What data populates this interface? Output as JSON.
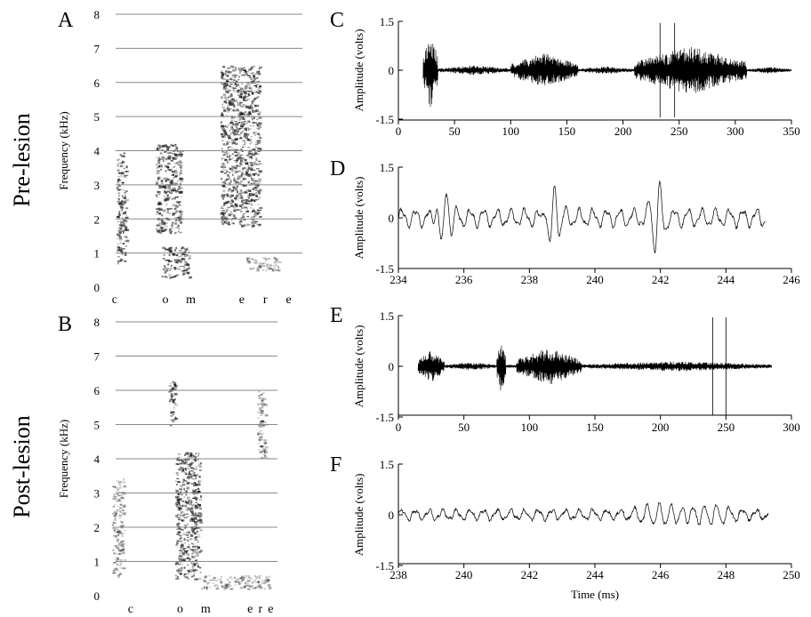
{
  "row_labels": {
    "top": "Pre-lesion",
    "bottom": "Post-lesion"
  },
  "panels": [
    {
      "id": "A",
      "letter": "A"
    },
    {
      "id": "B",
      "letter": "B"
    },
    {
      "id": "C",
      "letter": "C"
    },
    {
      "id": "D",
      "letter": "D"
    },
    {
      "id": "E",
      "letter": "E"
    },
    {
      "id": "F",
      "letter": "F"
    }
  ],
  "chart_data": [
    {
      "id": "A",
      "type": "heatmap",
      "title": "",
      "ylabel": "Frequency (kHz)",
      "xlabel": "",
      "ylim": [
        0,
        8
      ],
      "yticks": [
        "0",
        "1",
        "2",
        "3",
        "4",
        "5",
        "6",
        "7",
        "8"
      ],
      "grid": "horizontal",
      "phonemes": [
        "c",
        "o",
        "m",
        "e",
        "r",
        "e"
      ],
      "energy_blobs_khz_vs_relative_time": [
        {
          "t": [
            0.05,
            0.1
          ],
          "f": [
            0.7,
            4.0
          ],
          "level": "dark"
        },
        {
          "t": [
            0.25,
            0.38
          ],
          "f": [
            1.6,
            4.2
          ],
          "level": "dark"
        },
        {
          "t": [
            0.28,
            0.42
          ],
          "f": [
            0.3,
            1.2
          ],
          "level": "dark"
        },
        {
          "t": [
            0.58,
            0.78
          ],
          "f": [
            1.8,
            6.5
          ],
          "level": "dark"
        },
        {
          "t": [
            0.7,
            0.88
          ],
          "f": [
            0.5,
            0.9
          ],
          "level": "medium"
        }
      ]
    },
    {
      "id": "B",
      "type": "heatmap",
      "title": "",
      "ylabel": "Frequency (kHz)",
      "xlabel": "",
      "ylim": [
        0,
        8
      ],
      "yticks": [
        "0",
        "1",
        "2",
        "3",
        "4",
        "5",
        "6",
        "7",
        "8"
      ],
      "grid": "horizontal",
      "phonemes": [
        "c",
        "o",
        "m",
        "e",
        "r",
        "e"
      ],
      "energy_blobs_khz_vs_relative_time": [
        {
          "t": [
            0.03,
            0.1
          ],
          "f": [
            0.6,
            3.5
          ],
          "level": "medium"
        },
        {
          "t": [
            0.36,
            0.4
          ],
          "f": [
            5.0,
            6.3
          ],
          "level": "dark"
        },
        {
          "t": [
            0.4,
            0.55
          ],
          "f": [
            0.5,
            4.2
          ],
          "level": "dark"
        },
        {
          "t": [
            0.55,
            0.95
          ],
          "f": [
            0.2,
            0.6
          ],
          "level": "medium"
        },
        {
          "t": [
            0.88,
            0.93
          ],
          "f": [
            4.0,
            6.0
          ],
          "level": "medium"
        }
      ]
    },
    {
      "id": "C",
      "type": "line",
      "title": "",
      "ylabel": "Amplitude (volts)",
      "xlabel": "",
      "xlim": [
        0,
        350
      ],
      "ylim": [
        -1.5,
        1.5
      ],
      "xticks": [
        "0",
        "50",
        "100",
        "150",
        "200",
        "250",
        "300",
        "350"
      ],
      "yticks": [
        "1.5",
        "0",
        "-1.5"
      ],
      "envelope_segments_ms": [
        {
          "start": 22,
          "end": 35,
          "peak": 1.2
        },
        {
          "start": 35,
          "end": 100,
          "peak": 0.15
        },
        {
          "start": 100,
          "end": 160,
          "peak": 0.55
        },
        {
          "start": 160,
          "end": 210,
          "peak": 0.12
        },
        {
          "start": 210,
          "end": 310,
          "peak": 0.75
        },
        {
          "start": 310,
          "end": 350,
          "peak": 0.1
        }
      ],
      "spikes_ms": [
        233,
        246
      ]
    },
    {
      "id": "D",
      "type": "line",
      "title": "",
      "ylabel": "Amplitude (volts)",
      "xlabel": "",
      "xlim": [
        234,
        246
      ],
      "ylim": [
        -1.5,
        1.5
      ],
      "xticks": [
        "234",
        "236",
        "238",
        "240",
        "242",
        "244",
        "246"
      ],
      "yticks": [
        "1.5",
        "0",
        "-1.5"
      ],
      "data_range_ms": [
        234,
        245.2
      ]
    },
    {
      "id": "E",
      "type": "line",
      "title": "",
      "ylabel": "Amplitude (volts)",
      "xlabel": "",
      "xlim": [
        0,
        300
      ],
      "ylim": [
        -1.5,
        1.5
      ],
      "xticks": [
        "0",
        "50",
        "100",
        "150",
        "200",
        "250",
        "300"
      ],
      "yticks": [
        "1.5",
        "0",
        "-1.5"
      ],
      "envelope_segments_ms": [
        {
          "start": 15,
          "end": 35,
          "peak": 0.5
        },
        {
          "start": 35,
          "end": 75,
          "peak": 0.12
        },
        {
          "start": 75,
          "end": 82,
          "peak": 0.8
        },
        {
          "start": 90,
          "end": 140,
          "peak": 0.55
        },
        {
          "start": 140,
          "end": 285,
          "peak": 0.15
        }
      ],
      "spikes_ms": [
        240,
        250
      ]
    },
    {
      "id": "F",
      "type": "line",
      "title": "",
      "ylabel": "Amplitude (volts)",
      "xlabel": "Time (ms)",
      "xlim": [
        238,
        250
      ],
      "ylim": [
        -1.5,
        1.5
      ],
      "xticks": [
        "238",
        "240",
        "242",
        "244",
        "246",
        "248",
        "250"
      ],
      "yticks": [
        "1.5",
        "0",
        "-1.5"
      ],
      "data_range_ms": [
        238,
        249.3
      ]
    }
  ]
}
